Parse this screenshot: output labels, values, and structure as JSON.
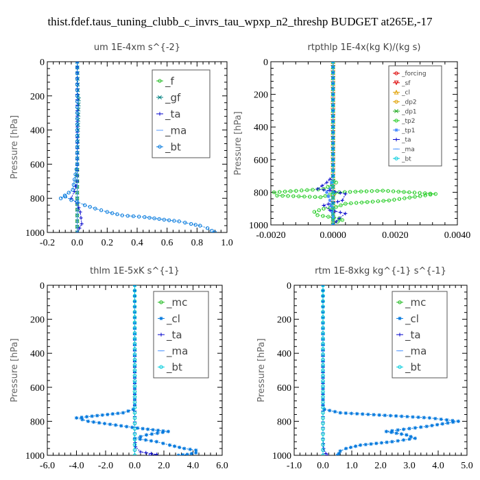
{
  "figure": {
    "suptitle": "thist.fdef.taus_tuning_clubb_c_invrs_tau_wpxp_n2_threshp  BUDGET at265E,-17"
  },
  "chart_data": [
    {
      "type": "line",
      "title": "um   1E-4xm s^{-2}",
      "ylabel": "Pressure [hPa]",
      "xlim": [
        -0.2,
        1.0
      ],
      "ylim": [
        1000,
        0
      ],
      "xticks": [
        -0.2,
        0.0,
        0.2,
        0.4,
        0.6,
        0.8,
        1.0
      ],
      "xtick_labels": [
        "-0.2",
        "0.0",
        "0.2",
        "0.4",
        "0.6",
        "0.8",
        "1.0"
      ],
      "yticks": [
        0,
        200,
        400,
        600,
        800,
        1000
      ],
      "ytick_labels": [
        "0",
        "200",
        "400",
        "600",
        "800",
        "1000"
      ],
      "legend": "top-right",
      "series": [
        {
          "name": "_f",
          "color": "#22bb22",
          "marker": "o",
          "x": [
            0,
            0,
            0,
            0,
            0,
            0,
            0,
            0,
            0,
            0,
            0
          ],
          "y": [
            0,
            100,
            200,
            300,
            400,
            500,
            600,
            700,
            800,
            900,
            1000
          ]
        },
        {
          "name": "_gf",
          "color": "#008080",
          "marker": "x",
          "x": [
            0,
            0.005,
            0.01,
            0.005,
            0,
            0,
            0
          ],
          "y": [
            0,
            200,
            220,
            400,
            600,
            800,
            1000
          ]
        },
        {
          "name": "_ta",
          "color": "#0000cc",
          "marker": "+",
          "x": [
            0,
            0,
            -0.02,
            -0.04,
            0,
            0.02,
            0.03,
            0
          ],
          "y": [
            0,
            700,
            760,
            800,
            830,
            880,
            950,
            1000
          ]
        },
        {
          "name": "_ma",
          "color": "#5599ff",
          "marker": "-",
          "x": [
            0,
            0,
            0
          ],
          "y": [
            0,
            500,
            1000
          ]
        },
        {
          "name": "_bt",
          "color": "#0077dd",
          "marker": "o",
          "x": [
            0,
            0,
            0,
            -0.03,
            -0.11,
            -0.08,
            -0.04,
            0.0,
            0.05,
            0.12,
            0.2,
            0.3,
            0.45,
            0.58,
            0.68,
            0.76,
            0.82,
            0.87,
            0.9,
            0.92
          ],
          "y": [
            0,
            200,
            600,
            750,
            800,
            790,
            810,
            820,
            840,
            860,
            880,
            900,
            910,
            925,
            935,
            950,
            960,
            975,
            990,
            1000
          ]
        }
      ]
    },
    {
      "type": "line",
      "title": "rtpthlp   1E-4x(kg K)/(kg s)",
      "ylabel": "Pressure [hPa]",
      "xlim": [
        -0.002,
        0.004
      ],
      "ylim": [
        1000,
        0
      ],
      "xticks": [
        -0.002,
        0.0,
        0.002,
        0.004
      ],
      "xtick_labels": [
        "-0.0020",
        "0.0000",
        "0.0020",
        "0.0040"
      ],
      "yticks": [
        0,
        200,
        400,
        600,
        800,
        1000
      ],
      "ytick_labels": [
        "0",
        "200",
        "400",
        "600",
        "800",
        "1000"
      ],
      "legend": "top-right",
      "series": [
        {
          "name": "_forcing",
          "color": "#dd0000",
          "marker": "o",
          "x": [
            0,
            0,
            0
          ],
          "y": [
            0,
            500,
            1000
          ]
        },
        {
          "name": "_sf",
          "color": "#dd0000",
          "marker": "v",
          "x": [
            0,
            0,
            0
          ],
          "y": [
            0,
            500,
            1000
          ]
        },
        {
          "name": "_cl",
          "color": "#e0a000",
          "marker": "^",
          "x": [
            0,
            0,
            0
          ],
          "y": [
            0,
            500,
            1000
          ]
        },
        {
          "name": "_dp2",
          "color": "#e0a000",
          "marker": "o",
          "x": [
            0,
            0,
            0
          ],
          "y": [
            0,
            500,
            1000
          ]
        },
        {
          "name": "_dp1",
          "color": "#22aa22",
          "marker": "x",
          "x": [
            0,
            0,
            0
          ],
          "y": [
            0,
            500,
            1000
          ]
        },
        {
          "name": "_tp2",
          "color": "#22cc22",
          "marker": "o",
          "x": [
            0,
            0,
            0.0001,
            -0.0003,
            -0.0019,
            -0.0018,
            -0.0004,
            0.0002,
            0.0016,
            0.0033,
            0.0018,
            0.0004,
            0.0001,
            -0.0003,
            -0.0006,
            -0.0005,
            0.0002,
            0.0003,
            0,
            0
          ],
          "y": [
            0,
            700,
            740,
            780,
            800,
            820,
            830,
            800,
            790,
            810,
            850,
            870,
            890,
            900,
            920,
            940,
            960,
            970,
            990,
            1000
          ]
        },
        {
          "name": "_tp1",
          "color": "#4488ff",
          "marker": "*",
          "x": [
            0,
            0,
            -0.0001,
            -0.0002,
            -0.0001,
            0,
            0
          ],
          "y": [
            0,
            700,
            780,
            800,
            850,
            950,
            1000
          ]
        },
        {
          "name": "_ta",
          "color": "#0000cc",
          "marker": "+",
          "x": [
            0,
            0,
            -0.0002,
            -0.0005,
            -0.0001,
            0.0004,
            0.0003,
            -0.0003,
            -0.0001,
            0.0004,
            0.0002,
            0
          ],
          "y": [
            0,
            700,
            740,
            780,
            790,
            810,
            850,
            880,
            910,
            930,
            960,
            1000
          ]
        },
        {
          "name": "_ma",
          "color": "#5599ff",
          "marker": "-",
          "x": [
            0,
            0,
            0
          ],
          "y": [
            0,
            500,
            1000
          ]
        },
        {
          "name": "_bt",
          "color": "#00ccdd",
          "marker": "o",
          "x": [
            0,
            0,
            0
          ],
          "y": [
            0,
            500,
            1000
          ]
        }
      ]
    },
    {
      "type": "line",
      "title": "thlm   1E-5xK s^{-1}",
      "ylabel": "Pressure [hPa]",
      "xlim": [
        -6.0,
        6.0
      ],
      "ylim": [
        1000,
        0
      ],
      "xticks": [
        -6.0,
        -4.0,
        -2.0,
        0.0,
        2.0,
        4.0,
        6.0
      ],
      "xtick_labels": [
        "-6.0",
        "-4.0",
        "-2.0",
        "0.0",
        "2.0",
        "4.0",
        "6.0"
      ],
      "yticks": [
        0,
        200,
        400,
        600,
        800,
        1000
      ],
      "ytick_labels": [
        "0",
        "200",
        "400",
        "600",
        "800",
        "1000"
      ],
      "legend": "top-right",
      "series": [
        {
          "name": "_mc",
          "color": "#22bb22",
          "marker": "o",
          "x": [
            0,
            0,
            0
          ],
          "y": [
            0,
            500,
            1000
          ]
        },
        {
          "name": "_cl",
          "color": "#0077dd",
          "marker": "*",
          "x": [
            0,
            0,
            -0.1,
            -0.8,
            -4.0,
            -3.2,
            0.2,
            2.3,
            0.8,
            0.0,
            1.5,
            2.4,
            3.4,
            4.2,
            4.2,
            3.6,
            3.0
          ],
          "y": [
            0,
            700,
            730,
            750,
            780,
            800,
            840,
            860,
            880,
            900,
            920,
            940,
            960,
            970,
            985,
            995,
            1000
          ]
        },
        {
          "name": "_ta",
          "color": "#0000cc",
          "marker": "+",
          "x": [
            0,
            0,
            0.05,
            0.4,
            1.5,
            1.0
          ],
          "y": [
            0,
            900,
            950,
            980,
            995,
            1000
          ]
        },
        {
          "name": "_ma",
          "color": "#5599ff",
          "marker": "-",
          "x": [
            0,
            0,
            0
          ],
          "y": [
            0,
            500,
            1000
          ]
        },
        {
          "name": "_bt",
          "color": "#00ccdd",
          "marker": "o",
          "x": [
            0,
            0,
            0
          ],
          "y": [
            0,
            500,
            1000
          ]
        }
      ]
    },
    {
      "type": "line",
      "title": "rtm   1E-8xkg kg^{-1} s^{-1}",
      "ylabel": "Pressure [hPa]",
      "xlim": [
        -1.0,
        5.0
      ],
      "ylim": [
        1000,
        0
      ],
      "xticks": [
        -1.0,
        0.0,
        1.0,
        2.0,
        3.0,
        4.0,
        5.0
      ],
      "xtick_labels": [
        "-1.0",
        "0.0",
        "1.0",
        "2.0",
        "3.0",
        "4.0",
        "5.0"
      ],
      "yticks": [
        0,
        200,
        400,
        600,
        800,
        1000
      ],
      "ytick_labels": [
        "0",
        "200",
        "400",
        "600",
        "800",
        "1000"
      ],
      "legend": "top-right",
      "series": [
        {
          "name": "_mc",
          "color": "#22bb22",
          "marker": "o",
          "x": [
            0,
            0,
            0
          ],
          "y": [
            0,
            500,
            1000
          ]
        },
        {
          "name": "_cl",
          "color": "#0077dd",
          "marker": "*",
          "x": [
            0,
            0,
            0.05,
            0.6,
            3.7,
            4.7,
            3.6,
            2.2,
            2.9,
            3.2,
            2.4,
            1.3,
            0.8,
            0.6,
            0.55,
            0.5
          ],
          "y": [
            0,
            700,
            730,
            750,
            780,
            800,
            830,
            860,
            880,
            900,
            920,
            940,
            960,
            975,
            990,
            1000
          ]
        },
        {
          "name": "_ta",
          "color": "#0000cc",
          "marker": "+",
          "x": [
            0,
            0,
            0.02,
            0.1,
            0.15
          ],
          "y": [
            0,
            900,
            960,
            990,
            1000
          ]
        },
        {
          "name": "_ma",
          "color": "#5599ff",
          "marker": "-",
          "x": [
            0,
            0,
            0
          ],
          "y": [
            0,
            500,
            1000
          ]
        },
        {
          "name": "_bt",
          "color": "#00ccdd",
          "marker": "o",
          "x": [
            0,
            0,
            0
          ],
          "y": [
            0,
            500,
            1000
          ]
        }
      ]
    }
  ]
}
